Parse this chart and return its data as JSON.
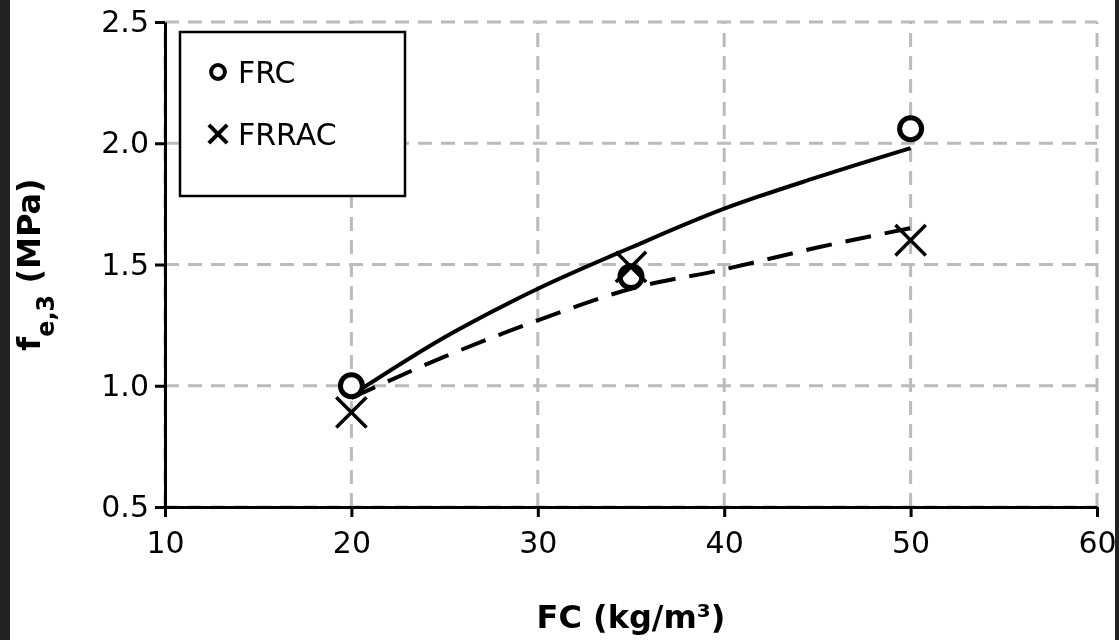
{
  "chart_data": {
    "type": "scatter",
    "xlabel": "FC (kg/m³)",
    "ylabel": "f$_{e,3}$ (MPa)",
    "xlim": [
      10,
      60
    ],
    "xticks": [
      10,
      20,
      30,
      40,
      50,
      60
    ],
    "ylim": [
      0.5,
      2.5
    ],
    "yticks": [
      {
        "value": 0.5,
        "label": "0.5"
      },
      {
        "value": 1,
        "label": "1.0"
      },
      {
        "value": 1.5,
        "label": "1.5"
      },
      {
        "value": 2,
        "label": "2.0"
      },
      {
        "value": 2.5,
        "label": "2.5"
      }
    ],
    "grid": true,
    "legend": "top left",
    "series": [
      {
        "name": "FRC",
        "type": "scatter",
        "marker": "circle",
        "color": "#000000",
        "x": [
          20,
          35,
          50
        ],
        "values": [
          1.0,
          1.45,
          2.06
        ]
      },
      {
        "name": "FRRAC",
        "type": "scatter",
        "marker": "cross",
        "color": "#000000",
        "x": [
          20,
          35,
          50
        ],
        "values": [
          0.89,
          1.49,
          1.6
        ]
      },
      {
        "type": "line",
        "line_style": "solid",
        "color": "#000000",
        "x": [
          20,
          25,
          30,
          35,
          40,
          45,
          50
        ],
        "values": [
          0.96,
          1.2,
          1.4,
          1.57,
          1.73,
          1.86,
          1.98
        ]
      },
      {
        "type": "line",
        "line_style": "dashed",
        "color": "#000000",
        "x": [
          20,
          25,
          30,
          35,
          40,
          45,
          50
        ],
        "values": [
          0.95,
          1.12,
          1.27,
          1.4,
          1.48,
          1.57,
          1.65
        ]
      }
    ]
  }
}
